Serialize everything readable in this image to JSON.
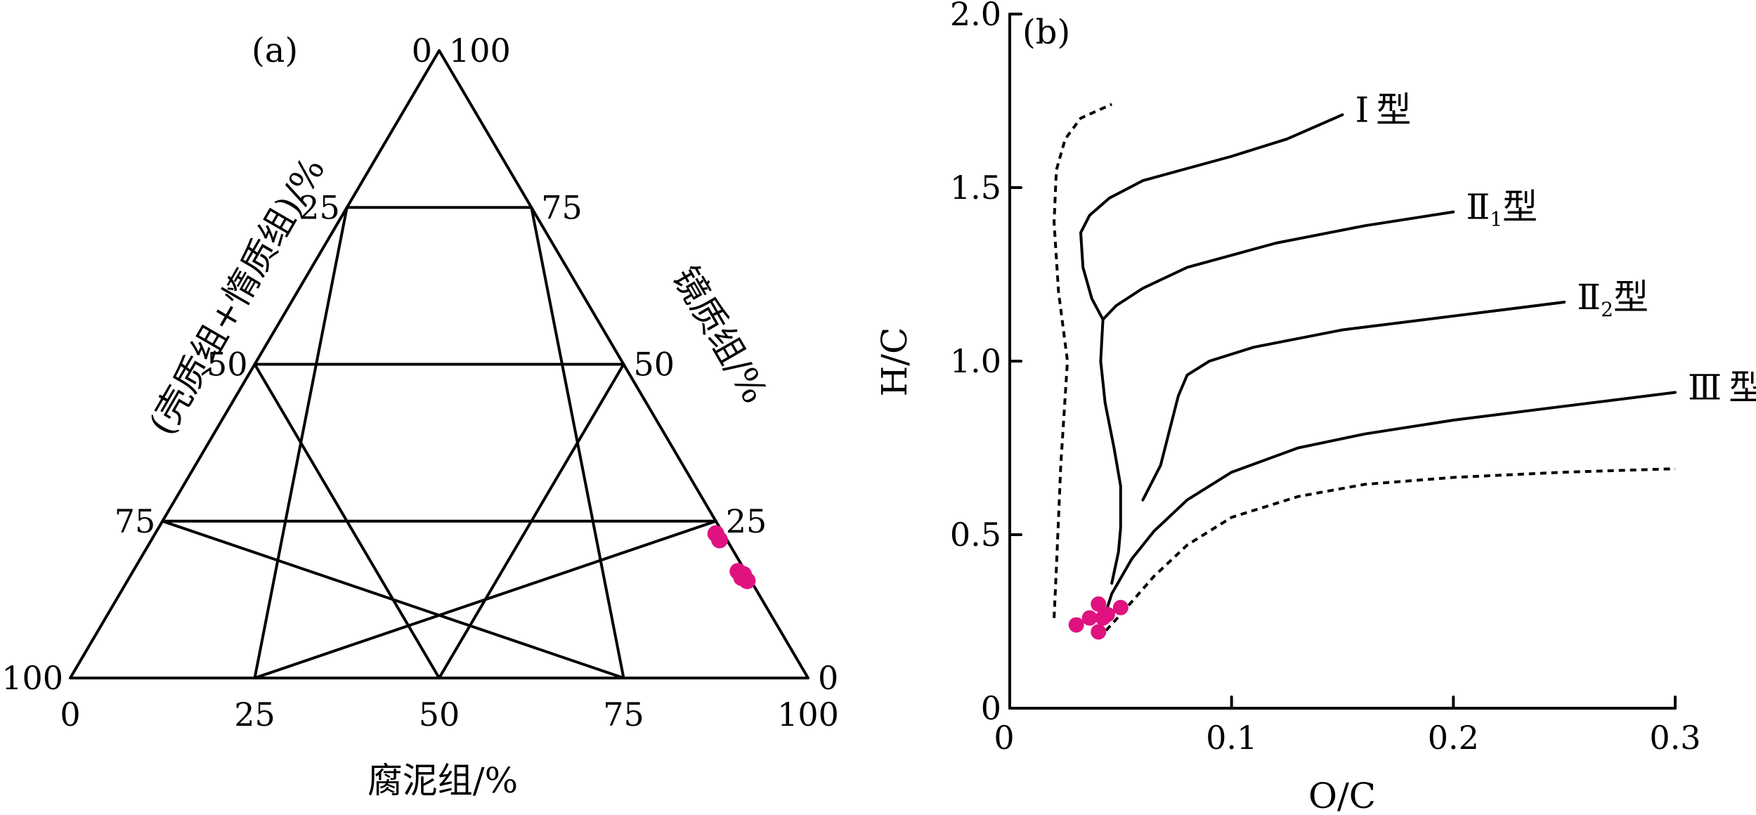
{
  "colors": {
    "points": "#e0127f",
    "lines": "#000000"
  },
  "ternary": {
    "panel_label": "(a)",
    "bottom_label": "腐泥组/%",
    "left_label": "(壳质组+惰质组)/%",
    "right_label": "镜质组/%",
    "bottom_ticks": [
      "0",
      "25",
      "50",
      "75",
      "100"
    ],
    "left_ticks": [
      "100",
      "75",
      "50",
      "25",
      "0"
    ],
    "right_ticks": [
      "0",
      "25",
      "50",
      "75",
      "100"
    ],
    "grid_step": 12.5
  },
  "chart_data": [
    {
      "type": "scatter",
      "title": "(a)",
      "axes": {
        "bottom": "腐泥组/%",
        "left": "(壳质组+惰质组)/%",
        "right": "镜质组/%"
      },
      "series": [
        {
          "points": [
            {
              "sapropelinite": 76,
              "vitrinite": 23,
              "liptinite_inertinite": 1
            },
            {
              "sapropelinite": 77,
              "vitrinite": 22,
              "liptinite_inertinite": 1
            },
            {
              "sapropelinite": 82,
              "vitrinite": 17,
              "liptinite_inertinite": 1
            },
            {
              "sapropelinite": 83,
              "vitrinite": 16.5,
              "liptinite_inertinite": 0.5
            },
            {
              "sapropelinite": 83,
              "vitrinite": 16,
              "liptinite_inertinite": 1
            },
            {
              "sapropelinite": 84,
              "vitrinite": 15.5,
              "liptinite_inertinite": 0.5
            }
          ]
        }
      ]
    },
    {
      "type": "line",
      "title": "(b)",
      "xlabel": "O/C",
      "ylabel": "H/C",
      "xlim": [
        0,
        0.3
      ],
      "ylim": [
        0,
        2.0
      ],
      "x_ticks": [
        "0",
        "0.1",
        "0.2",
        "0.3"
      ],
      "y_ticks": [
        "0",
        "0.5",
        "1.0",
        "1.5",
        "2.0"
      ],
      "series": [
        {
          "name": "Ⅰ型",
          "label_main": "Ⅰ",
          "label_sub": "",
          "label_tail": "型",
          "style": "solid",
          "points": [
            [
              0.15,
              1.71
            ],
            [
              0.125,
              1.64
            ],
            [
              0.1,
              1.59
            ],
            [
              0.06,
              1.52
            ],
            [
              0.045,
              1.47
            ],
            [
              0.036,
              1.42
            ],
            [
              0.032,
              1.37
            ],
            [
              0.033,
              1.27
            ],
            [
              0.037,
              1.18
            ],
            [
              0.042,
              1.12
            ]
          ]
        },
        {
          "name": "Ⅱ₁型",
          "label_main": "Ⅱ",
          "label_sub": "1",
          "label_tail": "型",
          "style": "solid",
          "points": [
            [
              0.2,
              1.43
            ],
            [
              0.16,
              1.39
            ],
            [
              0.12,
              1.34
            ],
            [
              0.08,
              1.27
            ],
            [
              0.06,
              1.21
            ],
            [
              0.048,
              1.16
            ],
            [
              0.042,
              1.12
            ],
            [
              0.041,
              1.0
            ],
            [
              0.043,
              0.88
            ],
            [
              0.047,
              0.75
            ],
            [
              0.05,
              0.64
            ],
            [
              0.05,
              0.52
            ],
            [
              0.049,
              0.45
            ],
            [
              0.046,
              0.36
            ]
          ]
        },
        {
          "name": "Ⅱ₂型",
          "label_main": "Ⅱ",
          "label_sub": "2",
          "label_tail": "型",
          "style": "solid",
          "points": [
            [
              0.25,
              1.17
            ],
            [
              0.2,
              1.13
            ],
            [
              0.15,
              1.09
            ],
            [
              0.11,
              1.04
            ],
            [
              0.09,
              1.0
            ],
            [
              0.08,
              0.96
            ],
            [
              0.076,
              0.9
            ],
            [
              0.072,
              0.8
            ],
            [
              0.068,
              0.7
            ],
            [
              0.06,
              0.6
            ]
          ]
        },
        {
          "name": "Ⅲ型",
          "label_main": "Ⅲ",
          "label_sub": "",
          "label_tail": "型",
          "style": "solid",
          "points": [
            [
              0.3,
              0.91
            ],
            [
              0.25,
              0.87
            ],
            [
              0.2,
              0.83
            ],
            [
              0.16,
              0.79
            ],
            [
              0.13,
              0.75
            ],
            [
              0.1,
              0.68
            ],
            [
              0.08,
              0.6
            ],
            [
              0.065,
              0.51
            ],
            [
              0.055,
              0.43
            ],
            [
              0.046,
              0.33
            ],
            [
              0.043,
              0.27
            ]
          ]
        },
        {
          "style": "dashed",
          "points": [
            [
              0.02,
              0.26
            ],
            [
              0.021,
              0.4
            ],
            [
              0.023,
              0.7
            ],
            [
              0.026,
              1.0
            ],
            [
              0.022,
              1.2
            ],
            [
              0.02,
              1.4
            ],
            [
              0.021,
              1.55
            ],
            [
              0.025,
              1.64
            ],
            [
              0.032,
              1.7
            ],
            [
              0.046,
              1.74
            ]
          ]
        },
        {
          "style": "dashed",
          "points": [
            [
              0.04,
              0.2
            ],
            [
              0.05,
              0.27
            ],
            [
              0.065,
              0.38
            ],
            [
              0.08,
              0.47
            ],
            [
              0.1,
              0.55
            ],
            [
              0.13,
              0.61
            ],
            [
              0.16,
              0.645
            ],
            [
              0.2,
              0.665
            ],
            [
              0.25,
              0.68
            ],
            [
              0.3,
              0.69
            ]
          ]
        },
        {
          "type": "scatter",
          "points": [
            [
              0.03,
              0.24
            ],
            [
              0.036,
              0.26
            ],
            [
              0.04,
              0.3
            ],
            [
              0.042,
              0.26
            ],
            [
              0.044,
              0.27
            ],
            [
              0.04,
              0.22
            ],
            [
              0.05,
              0.29
            ]
          ]
        }
      ]
    }
  ]
}
